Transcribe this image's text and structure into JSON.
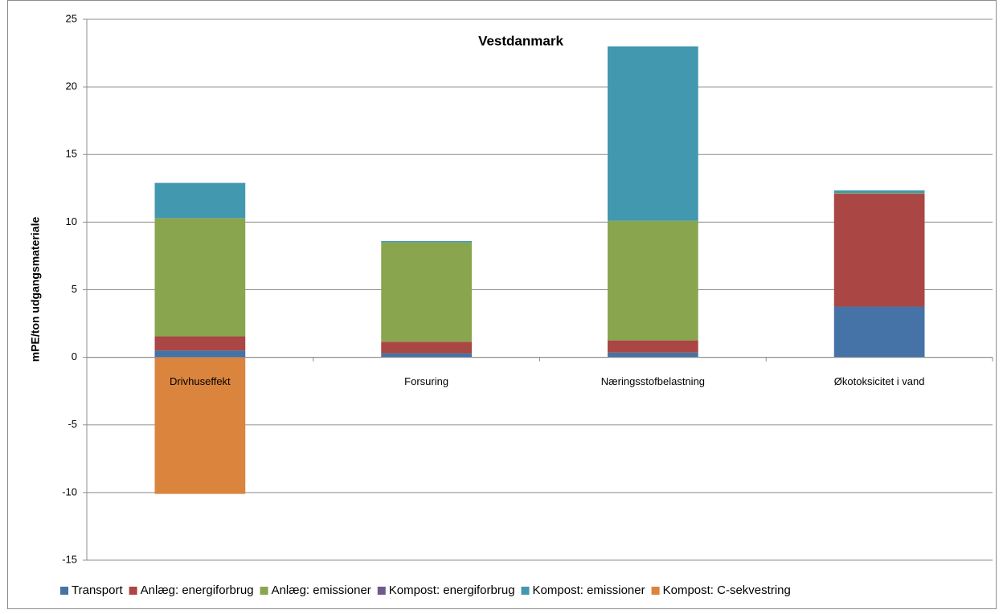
{
  "chart_data": {
    "type": "stacked_bar",
    "title": "Vestdanmark",
    "y_label": "mPE/ton udgangsmateriale",
    "categories": [
      "Drivhuseffekt",
      "Forsuring",
      "Næringsstofbelastning",
      "Økotoksicitet i vand"
    ],
    "series": [
      {
        "name": "Transport",
        "color": "#4572a7",
        "values": [
          0.5,
          0.3,
          0.35,
          3.75
        ]
      },
      {
        "name": "Anlæg: energiforbrug",
        "color": "#aa4643",
        "values": [
          1.05,
          0.85,
          0.9,
          8.35
        ]
      },
      {
        "name": "Anlæg: emissioner",
        "color": "#89a54e",
        "values": [
          8.75,
          7.35,
          8.85,
          0.05
        ]
      },
      {
        "name": "Kompost: energiforbrug",
        "color": "#71588f",
        "values": [
          0,
          0,
          0,
          0
        ]
      },
      {
        "name": "Kompost: emissioner",
        "color": "#4198af",
        "values": [
          2.6,
          0.1,
          12.9,
          0.2
        ]
      },
      {
        "name": "Kompost: C-sekvestring",
        "color": "#db843d",
        "values": [
          -10.1,
          0,
          0,
          0
        ]
      }
    ],
    "ylim": [
      -15,
      25
    ],
    "yticks": [
      -15,
      -10,
      -5,
      0,
      5,
      10,
      15,
      20,
      25
    ],
    "grid": true,
    "legend": "bottom"
  }
}
